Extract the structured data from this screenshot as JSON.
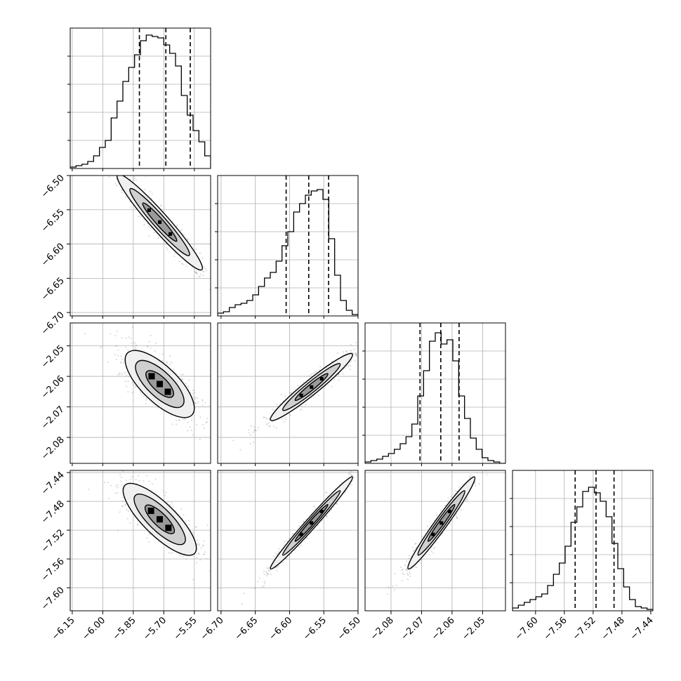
{
  "chart_data": {
    "type": "corner",
    "grid": true,
    "parameters": [
      {
        "range": [
          -6.16,
          -5.47
        ],
        "ticks": [
          -6.15,
          -6.0,
          -5.85,
          -5.7,
          -5.55
        ],
        "tick_labels": [
          "−6.15",
          "−6.00",
          "−5.85",
          "−5.70",
          "−5.55"
        ],
        "quantiles": [
          -5.82,
          -5.69,
          -5.57
        ],
        "hist_edges": [
          -6.16,
          -5.47
        ],
        "hist_values": [
          0.01,
          0.02,
          0.03,
          0.05,
          0.09,
          0.15,
          0.2,
          0.36,
          0.48,
          0.62,
          0.72,
          0.81,
          0.91,
          0.95,
          0.94,
          0.93,
          0.88,
          0.82,
          0.73,
          0.52,
          0.38,
          0.27,
          0.19,
          0.09
        ]
      },
      {
        "range": [
          -6.705,
          -6.5
        ],
        "ticks": [
          -6.7,
          -6.65,
          -6.6,
          -6.55,
          -6.5
        ],
        "tick_labels": [
          "−6.70",
          "−6.65",
          "−6.60",
          "−6.55",
          "−6.50"
        ],
        "quantiles": [
          -6.605,
          -6.572,
          -6.543
        ],
        "hist_edges": [
          -6.705,
          -6.5
        ],
        "hist_values": [
          0.02,
          0.03,
          0.06,
          0.08,
          0.09,
          0.11,
          0.15,
          0.21,
          0.27,
          0.31,
          0.39,
          0.5,
          0.6,
          0.74,
          0.8,
          0.86,
          0.89,
          0.9,
          0.83,
          0.55,
          0.29,
          0.11,
          0.04,
          0.01
        ]
      },
      {
        "range": [
          -2.0885,
          -2.0425
        ],
        "ticks": [
          -2.08,
          -2.07,
          -2.06,
          -2.05
        ],
        "tick_labels": [
          "−2.08",
          "−2.07",
          "−2.06",
          "−2.05"
        ],
        "quantiles": [
          -2.0705,
          -2.0637,
          -2.0577
        ],
        "hist_edges": [
          -2.0885,
          -2.0425
        ],
        "hist_values": [
          0.01,
          0.02,
          0.03,
          0.05,
          0.07,
          0.1,
          0.14,
          0.19,
          0.28,
          0.48,
          0.66,
          0.87,
          0.93,
          0.85,
          0.88,
          0.73,
          0.48,
          0.32,
          0.18,
          0.1,
          0.04,
          0.02,
          0.01,
          0.0
        ]
      },
      {
        "range": [
          -7.632,
          -7.437
        ],
        "ticks": [
          -7.6,
          -7.56,
          -7.52,
          -7.48,
          -7.44
        ],
        "tick_labels": [
          "−7.60",
          "−7.56",
          "−7.52",
          "−7.48",
          "−7.44"
        ],
        "quantiles": [
          -7.545,
          -7.516,
          -7.491
        ],
        "hist_edges": [
          -7.632,
          -7.437
        ],
        "hist_values": [
          0.02,
          0.04,
          0.06,
          0.08,
          0.1,
          0.12,
          0.18,
          0.26,
          0.34,
          0.46,
          0.63,
          0.74,
          0.85,
          0.88,
          0.84,
          0.78,
          0.67,
          0.48,
          0.3,
          0.17,
          0.08,
          0.03,
          0.02,
          0.01
        ]
      }
    ],
    "pairs": [
      {
        "row": 1,
        "col": 0,
        "center": [
          -5.72,
          -6.568
        ],
        "sigma": [
          0.105,
          0.035
        ],
        "corr": -0.96
      },
      {
        "row": 2,
        "col": 0,
        "center": [
          -5.72,
          -2.0625
        ],
        "sigma": [
          0.085,
          0.0055
        ],
        "corr": -0.72
      },
      {
        "row": 2,
        "col": 1,
        "center": [
          -6.568,
          -2.0635
        ],
        "sigma": [
          0.03,
          0.0055
        ],
        "corr": 0.96
      },
      {
        "row": 3,
        "col": 0,
        "center": [
          -5.72,
          -7.505
        ],
        "sigma": [
          0.09,
          0.025
        ],
        "corr": -0.8
      },
      {
        "row": 3,
        "col": 1,
        "center": [
          -6.568,
          -7.51
        ],
        "sigma": [
          0.03,
          0.032
        ],
        "corr": 0.985
      },
      {
        "row": 3,
        "col": 2,
        "center": [
          -2.0635,
          -7.51
        ],
        "sigma": [
          0.0055,
          0.032
        ],
        "corr": 0.975
      }
    ],
    "histogram_color": "#000000",
    "contour_fill_colors": [
      "#f0f0f0",
      "#cfcfcf",
      "#9a9a9a"
    ],
    "point_color": "#9a9a9a"
  }
}
